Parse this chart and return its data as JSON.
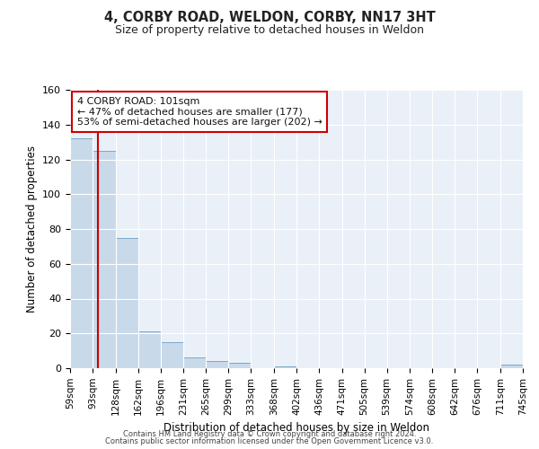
{
  "title": "4, CORBY ROAD, WELDON, CORBY, NN17 3HT",
  "subtitle": "Size of property relative to detached houses in Weldon",
  "xlabel": "Distribution of detached houses by size in Weldon",
  "ylabel": "Number of detached properties",
  "bin_edges": [
    59,
    93,
    128,
    162,
    196,
    231,
    265,
    299,
    333,
    368,
    402,
    436,
    471,
    505,
    539,
    574,
    608,
    642,
    676,
    711,
    745
  ],
  "bin_counts": [
    132,
    125,
    75,
    21,
    15,
    6,
    4,
    3,
    0,
    1,
    0,
    0,
    0,
    0,
    0,
    0,
    0,
    0,
    0,
    2
  ],
  "bar_color": "#c8d9ea",
  "bar_edge_color": "#7aaac8",
  "property_line_x": 101,
  "property_line_color": "#cc0000",
  "annotation_line1": "4 CORBY ROAD: 101sqm",
  "annotation_line2": "← 47% of detached houses are smaller (177)",
  "annotation_line3": "53% of semi-detached houses are larger (202) →",
  "ylim": [
    0,
    160
  ],
  "yticks": [
    0,
    20,
    40,
    60,
    80,
    100,
    120,
    140,
    160
  ],
  "background_color": "#eaf0f8",
  "plot_bg_color": "#eaf0f8",
  "grid_color": "#ffffff",
  "footer_line1": "Contains HM Land Registry data © Crown copyright and database right 2024.",
  "footer_line2": "Contains public sector information licensed under the Open Government Licence v3.0."
}
